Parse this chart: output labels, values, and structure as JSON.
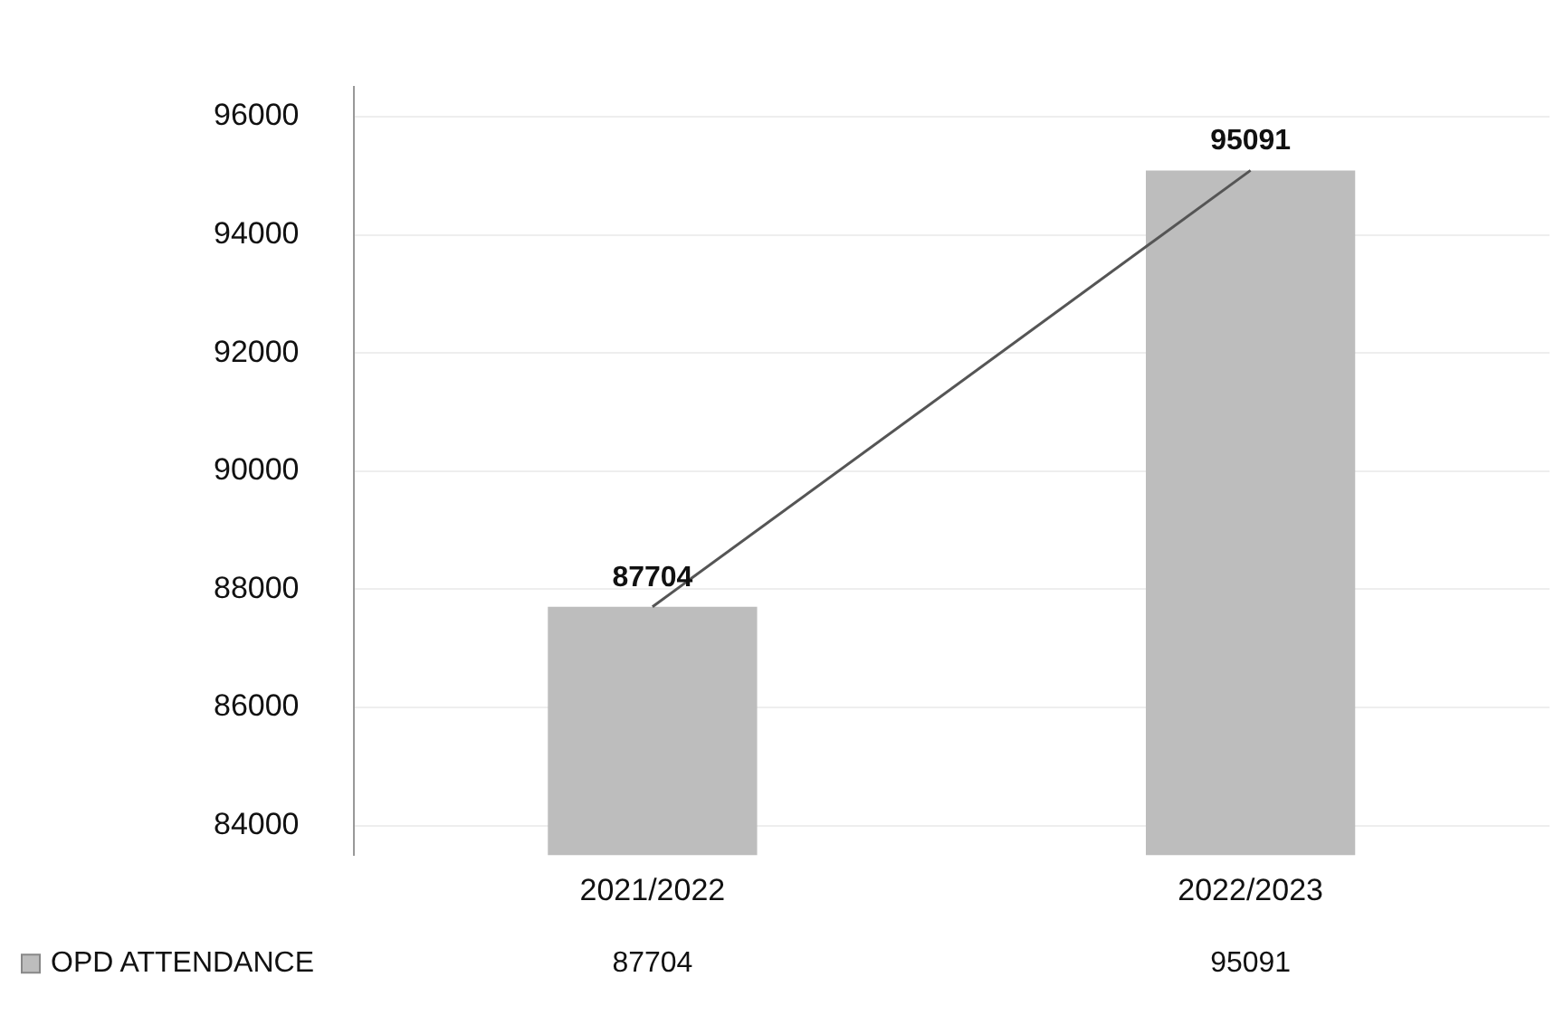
{
  "chart_data": {
    "type": "bar",
    "categories": [
      "2021/2022",
      "2022/2023"
    ],
    "series": [
      {
        "name": "OPD ATTENDANCE",
        "color": "#bdbdbd",
        "values": [
          87704,
          95091
        ]
      },
      {
        "type": "line",
        "color": "#555555",
        "values": [
          87704,
          95091
        ],
        "marker": "none",
        "line_style": "solid"
      }
    ],
    "ylim": [
      83500,
      96500
    ],
    "yticks": [
      84000,
      86000,
      88000,
      90000,
      92000,
      94000,
      96000
    ],
    "grid": "y",
    "legend": "bottom left",
    "data_labels": true
  }
}
